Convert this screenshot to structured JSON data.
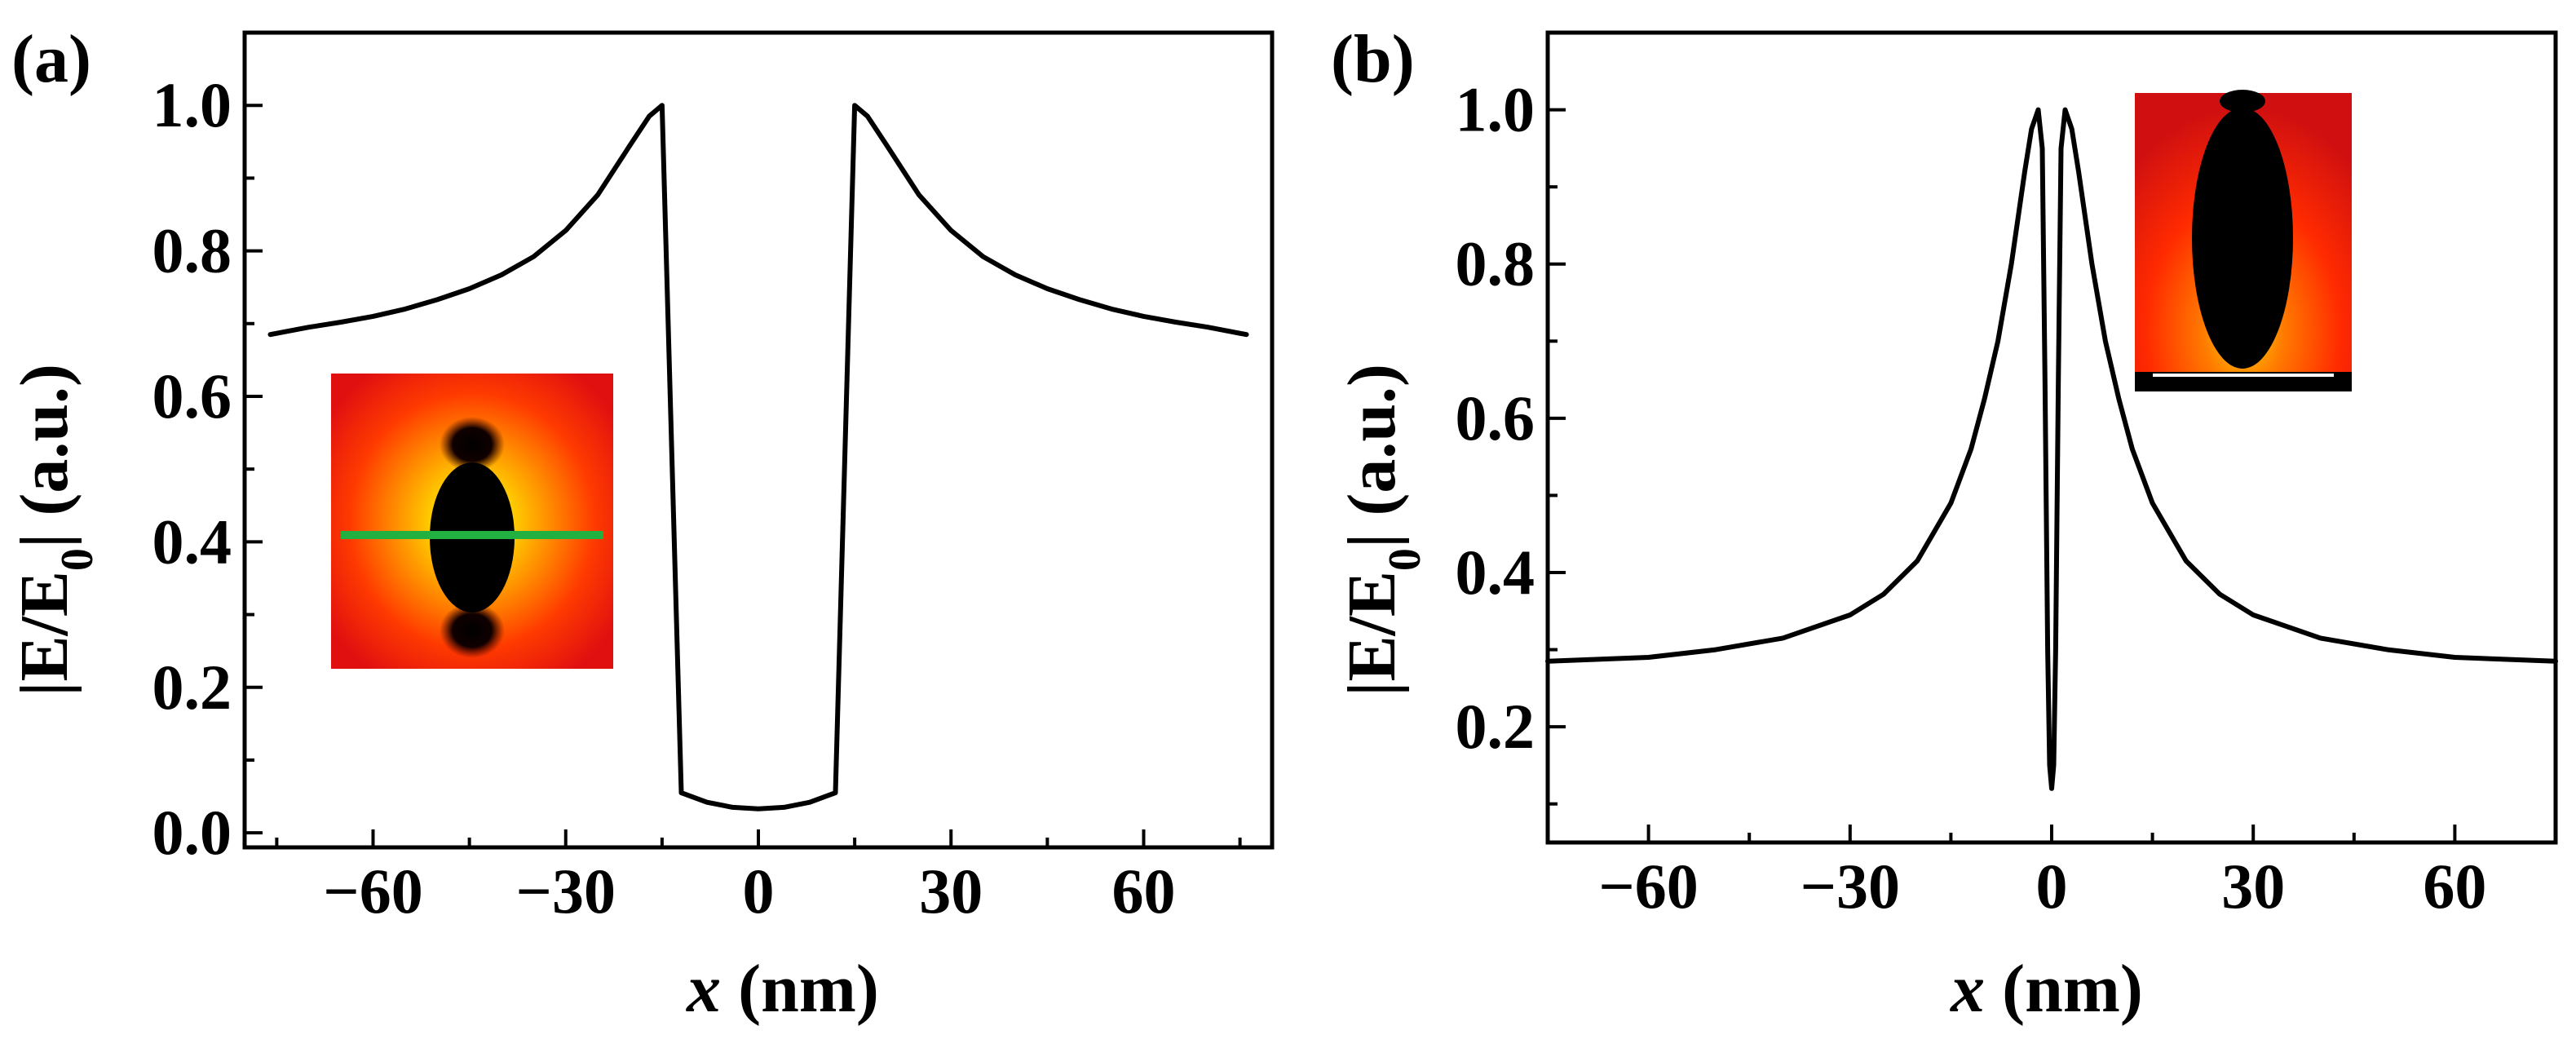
{
  "chart_data": [
    {
      "panel_label": "(a)",
      "type": "line",
      "xlabel": "x (nm)",
      "xlabel_var": "x",
      "xlabel_unit": "(nm)",
      "ylabel": "|E/E0| (a.u.)",
      "ylabel_main": "|E/E",
      "ylabel_sub": "0",
      "ylabel_rest": "| (a.u.)",
      "xlim": [
        -80,
        80
      ],
      "ylim": [
        -0.02,
        1.1
      ],
      "xticks": [
        -60,
        -30,
        0,
        30,
        60
      ],
      "xtick_labels": [
        "−60",
        "−30",
        "0",
        "30",
        "60"
      ],
      "yticks": [
        0.0,
        0.2,
        0.4,
        0.6,
        0.8,
        1.0
      ],
      "ytick_labels": [
        "0.0",
        "0.2",
        "0.4",
        "0.6",
        "0.8",
        "1.0"
      ],
      "series": [
        {
          "name": "|E/E0|",
          "x": [
            -76,
            -70,
            -65,
            -60,
            -55,
            -50,
            -45,
            -40,
            -35,
            -30,
            -25,
            -20,
            -17,
            -15,
            -12,
            -8,
            -4,
            0,
            4,
            8,
            12,
            15,
            17,
            20,
            25,
            30,
            35,
            40,
            45,
            50,
            55,
            60,
            65,
            70,
            76
          ],
          "y": [
            0.685,
            0.695,
            0.702,
            0.71,
            0.72,
            0.733,
            0.748,
            0.767,
            0.792,
            0.828,
            0.877,
            0.945,
            0.985,
            1.0,
            0.055,
            0.042,
            0.035,
            0.033,
            0.035,
            0.042,
            0.055,
            1.0,
            0.985,
            0.945,
            0.877,
            0.828,
            0.792,
            0.767,
            0.748,
            0.733,
            0.72,
            0.71,
            0.702,
            0.695,
            0.685
          ]
        }
      ],
      "inset": {
        "description_colors": [
          "#e01010",
          "#ff4a00",
          "#ffc000",
          "#ffff60",
          "#000000",
          "#22b040"
        ],
        "line_color": "#22b040"
      }
    },
    {
      "panel_label": "(b)",
      "type": "line",
      "xlabel": "x (nm)",
      "xlabel_var": "x",
      "xlabel_unit": "(nm)",
      "ylabel": "|E/E0| (a.u.)",
      "ylabel_main": "|E/E",
      "ylabel_sub": "0",
      "ylabel_rest": "| (a.u.)",
      "xlim": [
        -75,
        75
      ],
      "ylim": [
        0.05,
        1.1
      ],
      "xticks": [
        -60,
        -30,
        0,
        30,
        60
      ],
      "xtick_labels": [
        "−60",
        "−30",
        "0",
        "30",
        "60"
      ],
      "yticks": [
        0.2,
        0.4,
        0.6,
        0.8,
        1.0
      ],
      "ytick_labels": [
        "0.2",
        "0.4",
        "0.6",
        "0.8",
        "1.0"
      ],
      "series": [
        {
          "name": "|E/E0|",
          "x": [
            -75,
            -60,
            -50,
            -40,
            -30,
            -25,
            -20,
            -15,
            -12,
            -10,
            -8,
            -6,
            -4,
            -3,
            -2,
            -1.4,
            -1,
            -0.6,
            -0.3,
            0,
            0.3,
            0.6,
            1,
            1.4,
            2,
            3,
            4,
            6,
            8,
            10,
            12,
            15,
            20,
            25,
            30,
            40,
            50,
            60,
            75
          ],
          "y": [
            0.285,
            0.29,
            0.3,
            0.315,
            0.345,
            0.372,
            0.415,
            0.49,
            0.56,
            0.625,
            0.7,
            0.8,
            0.92,
            0.975,
            1.0,
            0.95,
            0.65,
            0.3,
            0.15,
            0.12,
            0.15,
            0.3,
            0.65,
            0.95,
            1.0,
            0.975,
            0.92,
            0.8,
            0.7,
            0.625,
            0.56,
            0.49,
            0.415,
            0.372,
            0.345,
            0.315,
            0.3,
            0.29,
            0.285
          ]
        }
      ],
      "inset": {
        "description_colors": [
          "#e01010",
          "#ff4a00",
          "#ffc000",
          "#000000",
          "#ffffff"
        ],
        "line_color": "#ffffff"
      }
    }
  ]
}
